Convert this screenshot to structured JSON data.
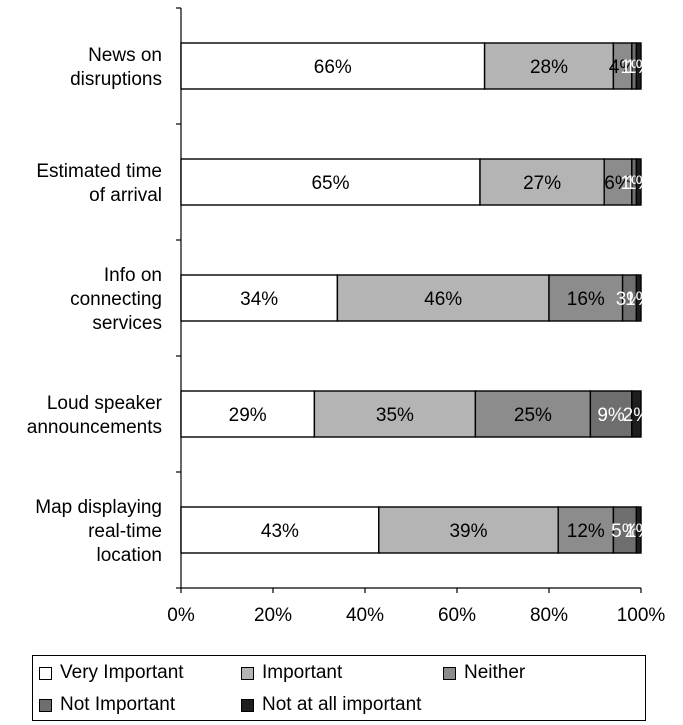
{
  "chart_data": {
    "type": "bar",
    "orientation": "horizontal",
    "stacked": true,
    "percent_stacked": true,
    "categories": [
      "News on disruptions",
      "Estimated time of arrival",
      "Info on connecting services",
      "Loud speaker announcements",
      "Map displaying real-time location"
    ],
    "category_lines": [
      [
        "News on",
        "disruptions"
      ],
      [
        "Estimated time",
        "of arrival"
      ],
      [
        "Info on",
        "connecting",
        "services"
      ],
      [
        "Loud speaker",
        "announcements"
      ],
      [
        "Map displaying",
        "real-time",
        "location"
      ]
    ],
    "series": [
      {
        "name": "Very Important",
        "color": "#ffffff",
        "values": [
          66,
          65,
          34,
          29,
          43
        ]
      },
      {
        "name": "Important",
        "color": "#b4b4b4",
        "values": [
          28,
          27,
          46,
          35,
          39
        ]
      },
      {
        "name": "Neither",
        "color": "#8c8c8c",
        "values": [
          4,
          6,
          16,
          25,
          12
        ]
      },
      {
        "name": "Not Important",
        "color": "#6e6e6e",
        "values": [
          1,
          1,
          3,
          9,
          5
        ]
      },
      {
        "name": "Not at all important",
        "color": "#1e1e1e",
        "values": [
          1,
          1,
          1,
          2,
          1
        ]
      }
    ],
    "x_ticks": [
      "0%",
      "20%",
      "40%",
      "60%",
      "80%",
      "100%"
    ],
    "xlim": [
      0,
      100
    ],
    "value_suffix": "%",
    "grid": false,
    "legend_position": "bottom"
  }
}
